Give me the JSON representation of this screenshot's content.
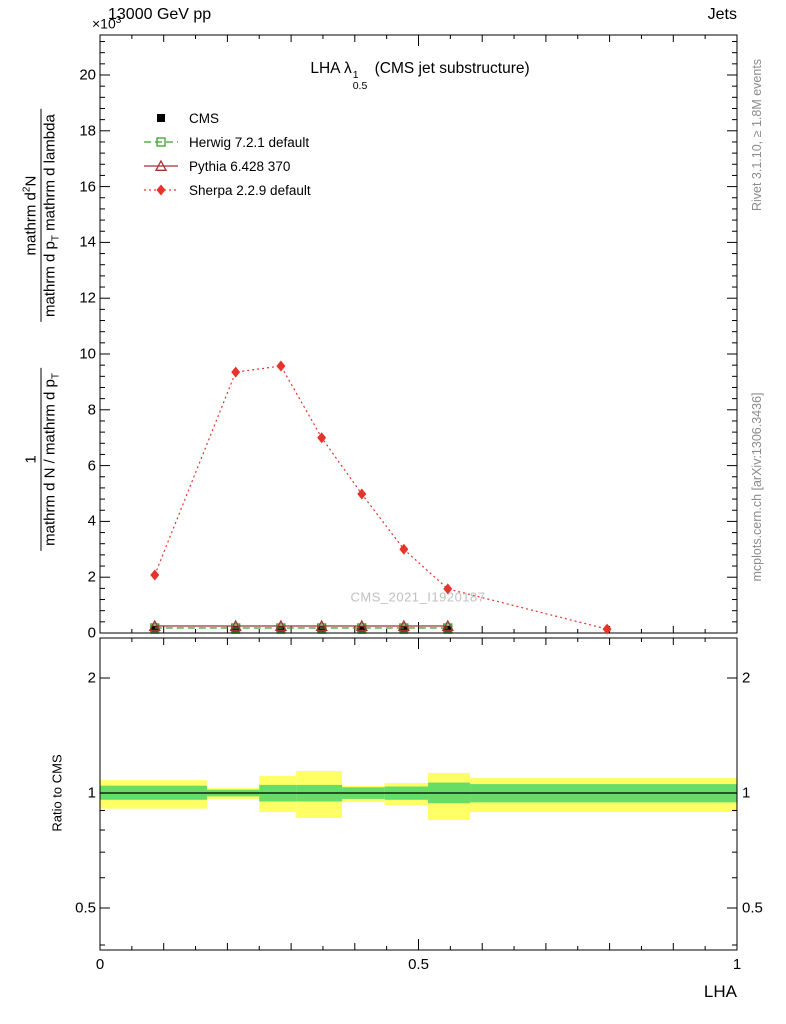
{
  "colors": {
    "frame": "#000000",
    "band_yellow": "#ffff66",
    "band_green": "#66dd66",
    "watermark": "#c0c0c0",
    "side_note": "#8c8c8c"
  },
  "header": {
    "center": "13000 GeV pp",
    "right": "Jets",
    "multiplier_base": "×10",
    "multiplier_exp": "3"
  },
  "title": {
    "prefix": "LHA λ",
    "sup": "1",
    "sub": "0.5",
    "suffix": " (CMS jet substructure)"
  },
  "watermark": "CMS_2021_I1920187",
  "side_notes": {
    "top_right": "Rivet 3.1.10, ≥ 1.8M events",
    "bottom_right": "mcplots.cern.ch [arXiv:1306.3436]"
  },
  "ylabel_main": {
    "frac1": {
      "num": "1",
      "den_pre": "mathrm d N / mathrm d p",
      "den_sub": "T"
    },
    "frac2": {
      "num_pre": "mathrm d",
      "num_sup": "2",
      "num_post": "N",
      "den_pre": "mathrm d p",
      "den_sub": "T",
      "den_post": " mathrm d lambda"
    }
  },
  "axes": {
    "x": {
      "label": "LHA",
      "tick_values": [
        0,
        0.5,
        1
      ],
      "tick_labels": [
        "0",
        "0.5",
        "1"
      ],
      "range": [
        0,
        1
      ]
    },
    "y_main": {
      "tick_values": [
        0,
        2,
        4,
        6,
        8,
        10,
        12,
        14,
        16,
        18,
        20
      ],
      "tick_labels": [
        "0",
        "2",
        "4",
        "6",
        "8",
        "10",
        "12",
        "14",
        "16",
        "18",
        "20"
      ],
      "max": 21.4
    },
    "y_ratio": {
      "label": "Ratio to CMS",
      "scale": "log",
      "tick_values": [
        0.5,
        1,
        2
      ],
      "tick_labels": [
        "0.5",
        "1",
        "2"
      ],
      "minor_ticks": [
        0.4,
        0.6,
        0.7,
        0.8,
        0.9
      ],
      "range": [
        0.39,
        2.55
      ]
    }
  },
  "chart_data": {
    "type": "line",
    "title": "LHA lambda^1_0.5 (CMS jet substructure)",
    "xlabel": "LHA",
    "ylabel": "1 / (dN/dpT) · d²N / (dpT dlambda)",
    "y_value_scale": "10^3",
    "x_range": [
      0,
      1
    ],
    "y_range": [
      0,
      21.4
    ],
    "legend_position": "top-left",
    "series": [
      {
        "name": "CMS",
        "role": "data",
        "color": "#000000",
        "marker": "square-filled",
        "line": "none",
        "x": [
          0.086,
          0.213,
          0.284,
          0.348,
          0.411,
          0.477,
          0.546
        ],
        "y": [
          0.12,
          0.12,
          0.12,
          0.12,
          0.12,
          0.12,
          0.12
        ]
      },
      {
        "name": "Herwig 7.2.1 default",
        "role": "mc",
        "color": "#3aa02c",
        "marker": "square-open",
        "line": "dashed",
        "x": [
          0.086,
          0.213,
          0.284,
          0.348,
          0.411,
          0.477,
          0.546
        ],
        "y": [
          0.18,
          0.18,
          0.18,
          0.18,
          0.18,
          0.18,
          0.18
        ]
      },
      {
        "name": "Pythia 6.428 370",
        "role": "mc",
        "color": "#a13232",
        "marker": "triangle-open",
        "line": "solid",
        "x": [
          0.086,
          0.213,
          0.284,
          0.348,
          0.411,
          0.477,
          0.546
        ],
        "y": [
          0.25,
          0.25,
          0.25,
          0.25,
          0.25,
          0.25,
          0.25
        ]
      },
      {
        "name": "Sherpa 2.2.9 default",
        "role": "mc",
        "color": "#e5342b",
        "marker": "diamond-filled",
        "line": "dotted",
        "x": [
          0.086,
          0.213,
          0.284,
          0.348,
          0.411,
          0.477,
          0.546,
          0.796
        ],
        "y": [
          2.08,
          9.35,
          9.57,
          7.0,
          4.98,
          3.0,
          1.58,
          0.14
        ]
      }
    ],
    "ratio_panel": {
      "label": "Ratio to CMS",
      "reference": 1,
      "bands_yellow": [
        [
          0,
          0.168,
          0.91,
          1.08
        ],
        [
          0.168,
          0.25,
          0.965,
          1.03
        ],
        [
          0.25,
          0.308,
          0.892,
          1.108
        ],
        [
          0.308,
          0.38,
          0.86,
          1.142
        ],
        [
          0.38,
          0.447,
          0.947,
          1.043
        ],
        [
          0.447,
          0.515,
          0.93,
          1.062
        ],
        [
          0.515,
          0.581,
          0.85,
          1.128
        ],
        [
          0.581,
          1,
          0.892,
          1.094
        ]
      ],
      "bands_green": [
        [
          0,
          0.168,
          0.96,
          1.045
        ],
        [
          0.168,
          0.25,
          0.98,
          1.02
        ],
        [
          0.25,
          0.308,
          0.95,
          1.05
        ],
        [
          0.308,
          0.38,
          0.95,
          1.05
        ],
        [
          0.38,
          0.447,
          0.965,
          1.035
        ],
        [
          0.447,
          0.515,
          0.96,
          1.04
        ],
        [
          0.515,
          0.581,
          0.94,
          1.065
        ],
        [
          0.581,
          1,
          0.945,
          1.055
        ]
      ]
    }
  }
}
